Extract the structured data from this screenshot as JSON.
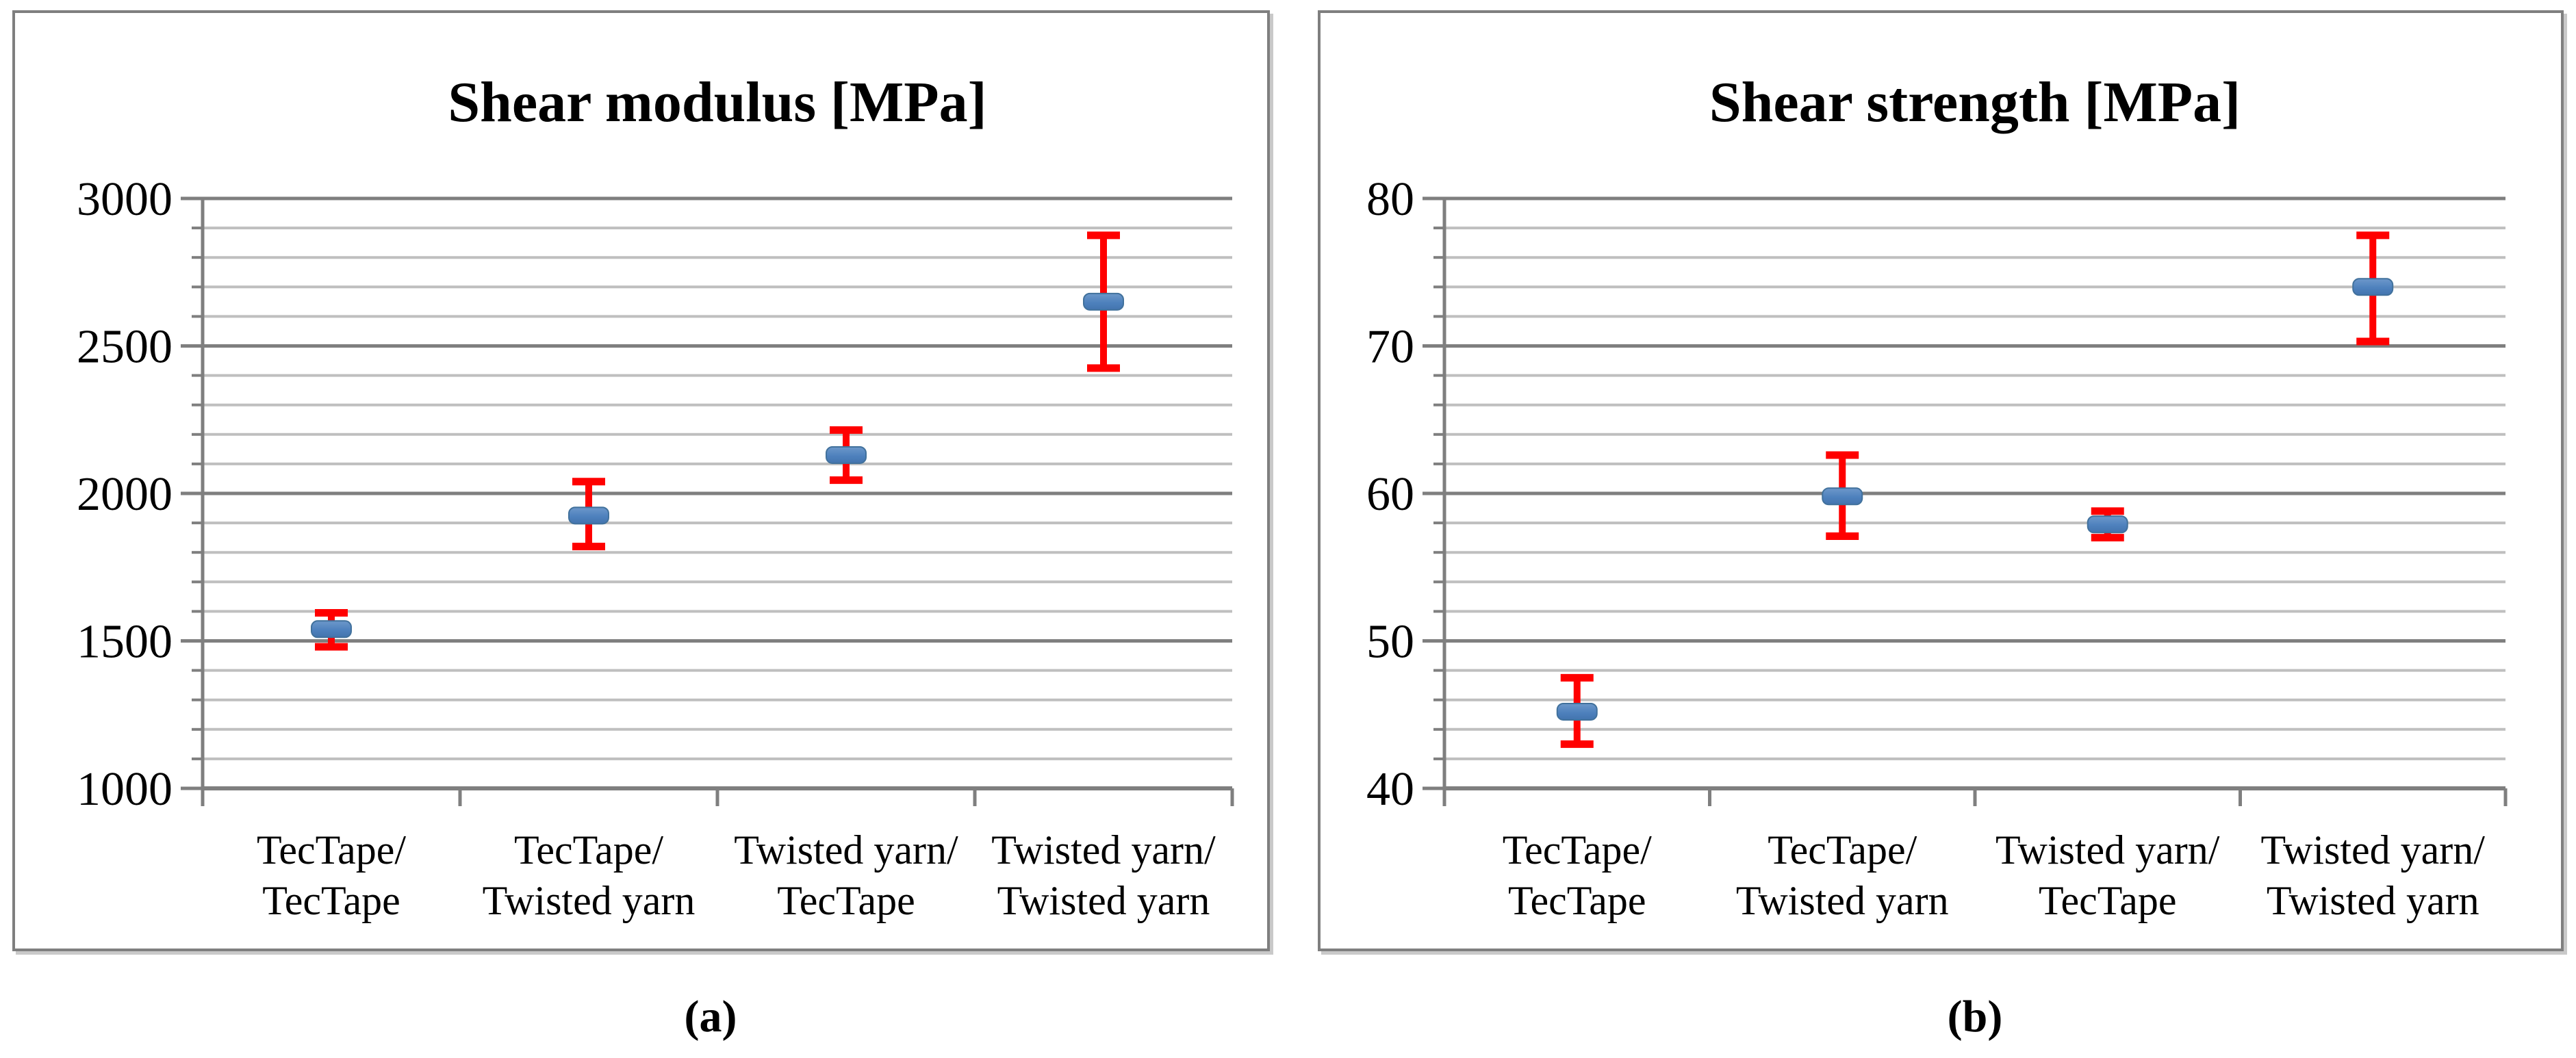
{
  "figure": {
    "caption_a": "(a)",
    "caption_b": "(b)"
  },
  "colors": {
    "error_bar_red": "#FF0000",
    "marker_blue": "#4E81BD",
    "marker_blue_dark": "#41719C",
    "gridline_minor": "#BFBFBF",
    "gridline_major": "#7F7F7F",
    "axis": "#7F7F7F",
    "panel_border": "#7F7F7F",
    "text": "#000000"
  },
  "chart_data": [
    {
      "type": "scatter",
      "subtype": "mean-with-error-bars",
      "panel": "a",
      "title": "Shear modulus [MPa]",
      "categories": [
        [
          "TecTape/",
          "TecTape"
        ],
        [
          "TecTape/",
          "Twisted yarn"
        ],
        [
          "Twisted yarn/",
          "TecTape"
        ],
        [
          "Twisted yarn/",
          "Twisted yarn"
        ]
      ],
      "series": [
        {
          "name": "Shear modulus",
          "means": [
            1540,
            1925,
            2130,
            2650
          ],
          "upper": [
            1595,
            2040,
            2215,
            2875
          ],
          "lower": [
            1480,
            1820,
            2045,
            2425
          ]
        }
      ],
      "xlabel": "",
      "ylabel": "",
      "ylim": [
        1000,
        3000
      ],
      "ytick_major": 500,
      "ytick_minor": 100,
      "grid": "horizontal-major-and-minor",
      "legend": "none"
    },
    {
      "type": "scatter",
      "subtype": "mean-with-error-bars",
      "panel": "b",
      "title": "Shear strength [MPa]",
      "categories": [
        [
          "TecTape/",
          "TecTape"
        ],
        [
          "TecTape/",
          "Twisted yarn"
        ],
        [
          "Twisted yarn/",
          "TecTape"
        ],
        [
          "Twisted yarn/",
          "Twisted yarn"
        ]
      ],
      "series": [
        {
          "name": "Shear strength",
          "means": [
            45.2,
            59.8,
            57.9,
            74.0
          ],
          "upper": [
            47.5,
            62.6,
            58.8,
            77.5
          ],
          "lower": [
            43.0,
            57.1,
            57.0,
            70.3
          ]
        }
      ],
      "xlabel": "",
      "ylabel": "",
      "ylim": [
        40,
        80
      ],
      "ytick_major": 10,
      "ytick_minor": 2,
      "grid": "horizontal-major-and-minor",
      "legend": "none"
    }
  ]
}
